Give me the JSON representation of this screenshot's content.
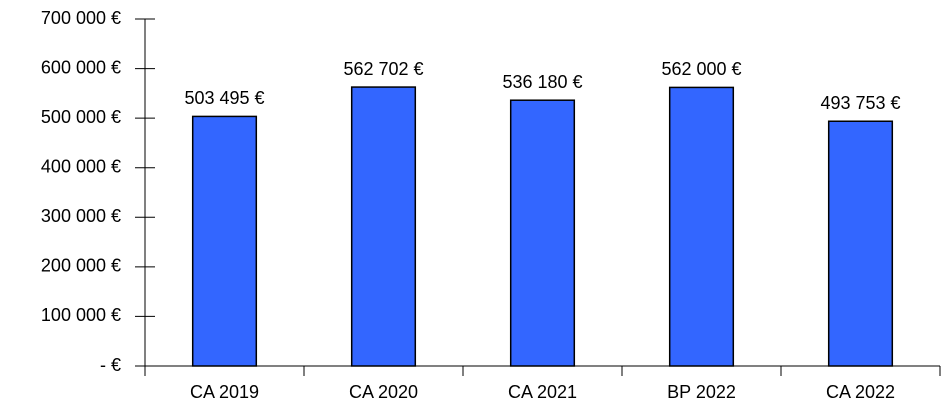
{
  "chart_data": {
    "type": "bar",
    "categories": [
      "CA 2019",
      "CA 2020",
      "CA 2021",
      "BP 2022",
      "CA 2022"
    ],
    "values": [
      503495,
      562702,
      536180,
      562000,
      493753
    ],
    "value_labels": [
      "503 495 €",
      "562 702 €",
      "536 180 €",
      "562 000 €",
      "493 753 €"
    ],
    "color": "#3366ff",
    "ylim": [
      0,
      700000
    ],
    "yticks": [
      {
        "value": 0,
        "label": "- €"
      },
      {
        "value": 100000,
        "label": "100 000 €"
      },
      {
        "value": 200000,
        "label": "200 000 €"
      },
      {
        "value": 300000,
        "label": "300 000 €"
      },
      {
        "value": 400000,
        "label": "400 000 €"
      },
      {
        "value": 500000,
        "label": "500 000 €"
      },
      {
        "value": 600000,
        "label": "600 000 €"
      },
      {
        "value": 700000,
        "label": "700 000 €"
      }
    ],
    "grid": false
  }
}
